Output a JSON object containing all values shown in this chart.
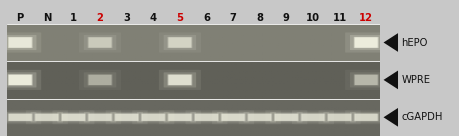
{
  "fig_width": 4.6,
  "fig_height": 1.36,
  "dpi": 100,
  "outer_bg": "#c8c8c8",
  "gel_bg_row0": "#808075",
  "gel_bg_row1": "#606058",
  "gel_bg_row2": "#686860",
  "band_color": "#f0f0e0",
  "lane_labels": [
    "P",
    "N",
    "1",
    "2",
    "3",
    "4",
    "5",
    "6",
    "7",
    "8",
    "9",
    "10",
    "11",
    "12"
  ],
  "lane_colors": [
    "#111111",
    "#111111",
    "#111111",
    "#cc0000",
    "#111111",
    "#111111",
    "#cc0000",
    "#111111",
    "#111111",
    "#111111",
    "#111111",
    "#111111",
    "#111111",
    "#cc0000"
  ],
  "row_labels": [
    "hEPO",
    "WPRE",
    "cGAPDH"
  ],
  "arrow_char": "◄",
  "num_lanes": 14,
  "hEPO_bands": [
    0,
    3,
    6,
    13
  ],
  "WPRE_bands": [
    0,
    3,
    6,
    13
  ],
  "cGAPDH_bands": [
    0,
    1,
    2,
    3,
    4,
    5,
    6,
    7,
    8,
    9,
    10,
    11,
    12,
    13
  ],
  "hEPO_intensities": [
    0.92,
    0.5,
    0.6,
    1.0
  ],
  "WPRE_intensities": [
    1.0,
    0.38,
    0.8,
    0.45
  ],
  "cGAPDH_intensities": [
    0.72,
    0.68,
    0.72,
    0.68,
    0.72,
    0.68,
    0.72,
    0.68,
    0.72,
    0.68,
    0.72,
    0.68,
    0.65,
    0.68
  ],
  "label_area_bg": "#d8d8d0",
  "label_text_color": "#111111",
  "separator_color": "#ffffff",
  "top_border_color": "#444440",
  "bottom_border_color": "#444440"
}
